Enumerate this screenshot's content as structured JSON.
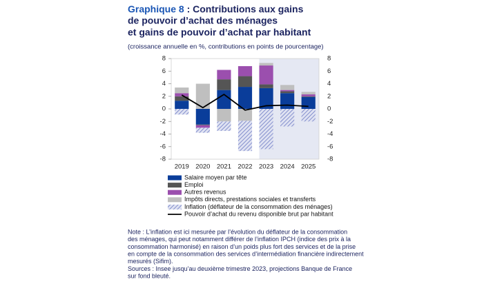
{
  "chart_data": {
    "type": "bar",
    "title_label": "Graphique 8",
    "title_lines": [
      " : Contributions aux gains",
      "de pouvoir d’achat des ménages",
      "et gains de pouvoir d’achat par habitant"
    ],
    "subtitle": "(croissance annuelle en %, contributions en points de pourcentage)",
    "categories": [
      "2019",
      "2020",
      "2021",
      "2022",
      "2023",
      "2024",
      "2025"
    ],
    "series": [
      {
        "name": "Salaire moyen par tête",
        "color": "#0a3d9a",
        "values": [
          1.3,
          -2.5,
          3.0,
          3.5,
          3.3,
          2.5,
          1.9
        ]
      },
      {
        "name": "Emploi",
        "color": "#555555",
        "values": [
          0.7,
          -0.1,
          1.7,
          1.7,
          0.6,
          0.3,
          0.1
        ]
      },
      {
        "name": "Autres revenus",
        "color": "#9b4fae",
        "values": [
          0.5,
          -0.4,
          1.5,
          1.6,
          3.0,
          0.2,
          0.3
        ]
      },
      {
        "name": "Impôts directs, prestations sociales et transferts",
        "color": "#bfbfbf",
        "values": [
          0.9,
          4.0,
          -2.0,
          -1.9,
          0.4,
          0.8,
          0.4
        ]
      },
      {
        "name": "Inflation (déflateur de la consommation des ménages)",
        "color": "#6d7bc4",
        "pattern": "hatch",
        "values": [
          -0.9,
          -0.8,
          -1.5,
          -4.8,
          -6.4,
          -2.8,
          -2.0
        ]
      },
      {
        "name": "Pouvoir d’achat du revenu disponible brut par habitant",
        "color": "#000000",
        "type": "line",
        "values": [
          2.2,
          0.2,
          2.3,
          -0.2,
          0.5,
          0.6,
          0.4
        ]
      }
    ],
    "ylim": [
      -8,
      8
    ],
    "yticks": [
      -8,
      -6,
      -4,
      -2,
      0,
      2,
      4,
      6,
      8
    ],
    "shaded_from": "2023",
    "shade_color": "#e5e8f3",
    "notes": [
      "Note : L’inflation est ici mesurée par l’évolution du déflateur de la consommation",
      "des ménages, qui peut notamment différer de l’inflation IPCH (indice des prix à la",
      "consommation harmonisé) en raison d’un poids plus fort des services et de la prise",
      "en compte de la consommation des services d’intermédiation financière indirectement",
      "mesurés (Sifim).",
      "Sources : Insee jusqu’au deuxième trimestre 2023, projections Banque de France",
      "sur fond bleuté."
    ]
  }
}
